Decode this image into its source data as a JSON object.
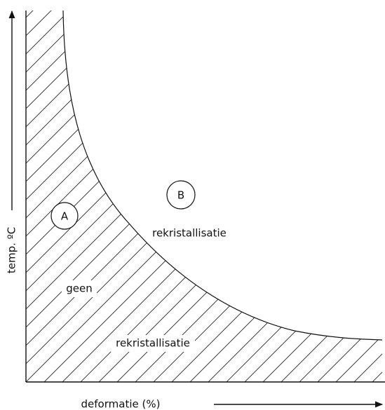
{
  "axes": {
    "y_label": "temp. ºC",
    "x_label": "deformatie (%)"
  },
  "regions": [
    {
      "marker": "A",
      "label_lines": [
        "geen",
        "rekristallisatie"
      ]
    },
    {
      "marker": "B",
      "label_lines": [
        "rekristallisatie"
      ]
    }
  ]
}
